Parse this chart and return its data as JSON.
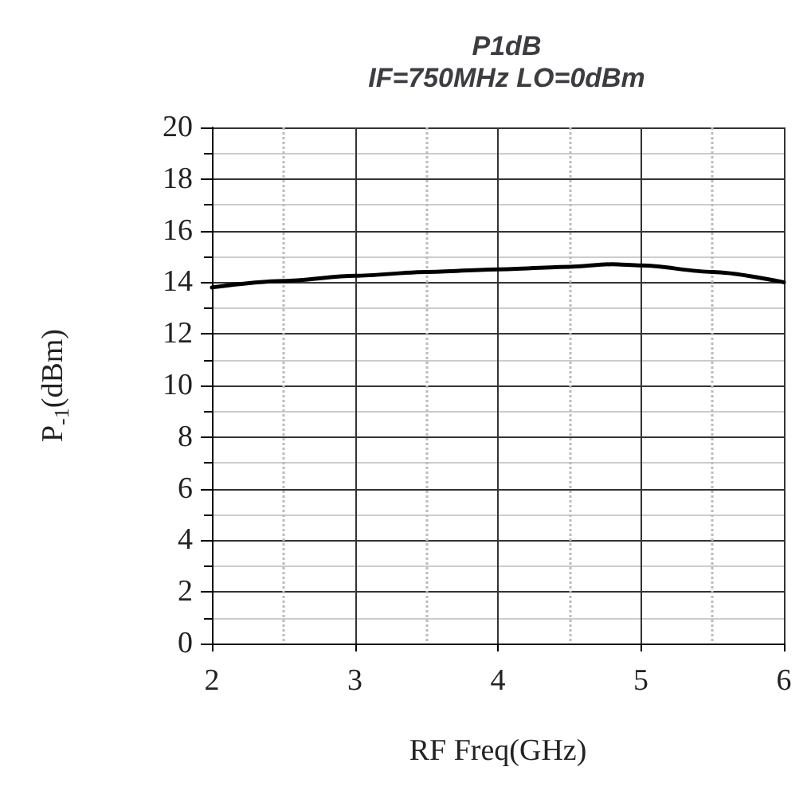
{
  "chart_data": {
    "type": "line",
    "title": "P1dB\nIF=750MHz LO=0dBm",
    "xlabel": "RF Freq(GHz)",
    "ylabel": "P$_{-1}$(dBm)",
    "x": [
      2,
      2.5,
      3,
      3.5,
      4,
      4.5,
      4.8,
      5,
      5.5,
      6
    ],
    "series": [
      {
        "color": "#000000",
        "values": [
          13.8,
          14.05,
          14.25,
          14.4,
          14.5,
          14.6,
          14.7,
          14.65,
          14.4,
          14.0
        ]
      }
    ],
    "xlim": [
      2,
      6
    ],
    "xticks": [
      2,
      3,
      4,
      5,
      6
    ],
    "ylim": [
      0,
      20
    ],
    "yticks": [
      0,
      2,
      4,
      6,
      8,
      10,
      12,
      14,
      16,
      18,
      20
    ],
    "grid": true,
    "marker": "none",
    "line_style": "solid"
  }
}
